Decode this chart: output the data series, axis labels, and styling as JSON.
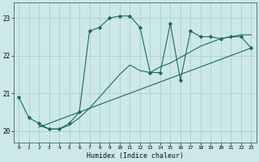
{
  "title": "",
  "xlabel": "Humidex (Indice chaleur)",
  "xlim": [
    -0.5,
    23.5
  ],
  "ylim": [
    19.7,
    23.4
  ],
  "yticks": [
    20,
    21,
    22,
    23
  ],
  "xticks": [
    0,
    1,
    2,
    3,
    4,
    5,
    6,
    7,
    8,
    9,
    10,
    11,
    12,
    13,
    14,
    15,
    16,
    17,
    18,
    19,
    20,
    21,
    22,
    23
  ],
  "bg_color": "#cce8e8",
  "grid_color": "#aacfcf",
  "line_color": "#1a6b5a",
  "line1_x": [
    0,
    1,
    2,
    3,
    4,
    5,
    6,
    7,
    8,
    9,
    10,
    11,
    12,
    13,
    14,
    15,
    16,
    17,
    18,
    19,
    20,
    21,
    22,
    23
  ],
  "line1_y": [
    20.9,
    20.35,
    20.2,
    20.05,
    20.05,
    20.2,
    20.5,
    22.65,
    22.75,
    23.0,
    23.05,
    23.05,
    22.75,
    21.55,
    21.55,
    22.85,
    21.35,
    22.65,
    22.5,
    22.5,
    22.45,
    22.5,
    22.5,
    22.2
  ],
  "line2_x": [
    2,
    3,
    4,
    5,
    6,
    7,
    8,
    9,
    10,
    11,
    12,
    13,
    14,
    15,
    16,
    17,
    18,
    19,
    20,
    21,
    22,
    23
  ],
  "line2_y": [
    20.15,
    20.05,
    20.05,
    20.15,
    20.35,
    20.6,
    20.9,
    21.2,
    21.5,
    21.75,
    21.6,
    21.55,
    21.7,
    21.8,
    21.95,
    22.1,
    22.25,
    22.35,
    22.45,
    22.5,
    22.55,
    22.55
  ],
  "line3_x": [
    2,
    23
  ],
  "line3_y": [
    20.1,
    22.2
  ]
}
